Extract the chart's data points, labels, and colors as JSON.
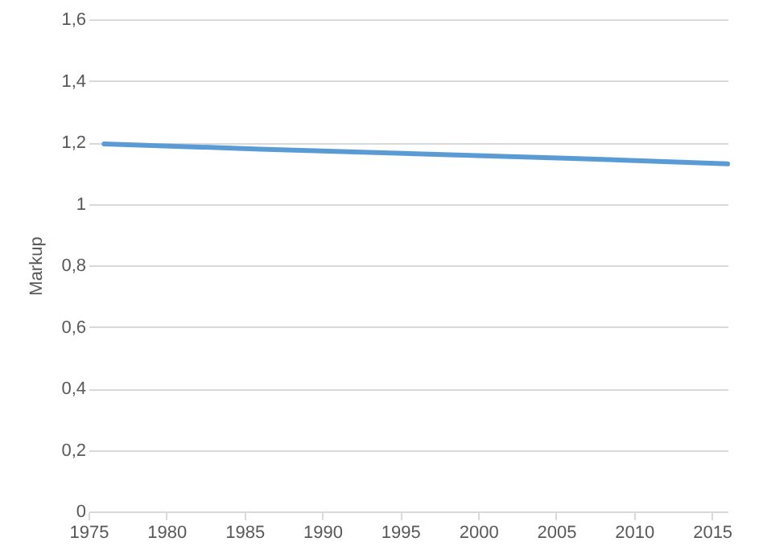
{
  "chart_data": {
    "type": "line",
    "ylabel": "Markup",
    "x": [
      1976,
      1986,
      1996,
      2006,
      2016
    ],
    "series": [
      {
        "color": "#5b9bd5",
        "values": [
          1.195,
          1.178,
          1.163,
          1.148,
          1.13
        ]
      }
    ],
    "xlim": [
      1975,
      2016
    ],
    "xticks": [
      1975,
      1980,
      1985,
      1990,
      1995,
      2000,
      2005,
      2010,
      2015
    ],
    "ylim": [
      0,
      1.6
    ],
    "yticks": [
      {
        "value": 0,
        "label": "0"
      },
      {
        "value": 0.2,
        "label": "0,2"
      },
      {
        "value": 0.4,
        "label": "0,4"
      },
      {
        "value": 0.6,
        "label": "0,6"
      },
      {
        "value": 0.8,
        "label": "0,8"
      },
      {
        "value": 1,
        "label": "1"
      },
      {
        "value": 1.2,
        "label": "1,2"
      },
      {
        "value": 1.4,
        "label": "1,4"
      },
      {
        "value": 1.6,
        "label": "1,6"
      }
    ],
    "grid": "y",
    "marker": "none",
    "line_style": "solid"
  }
}
